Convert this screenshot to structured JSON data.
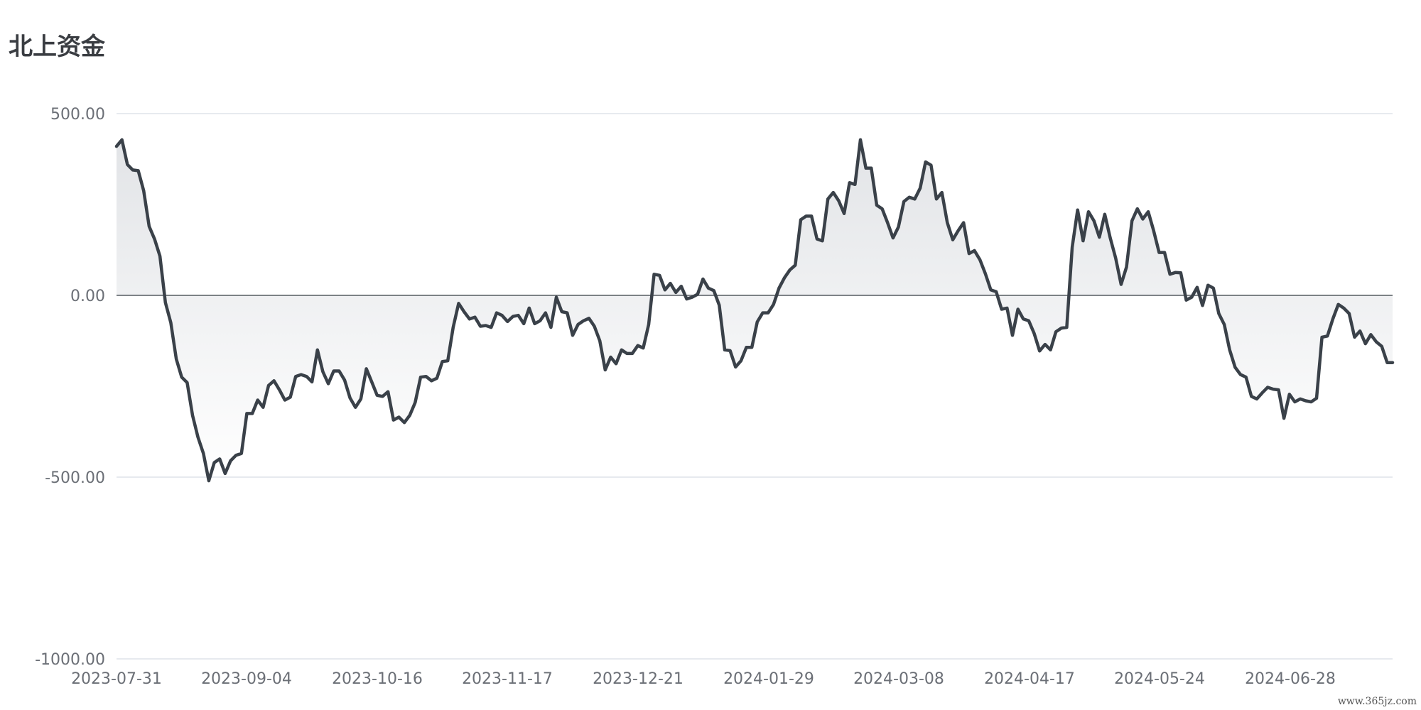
{
  "title": "北上资金",
  "watermark": "www.365jz.com",
  "chart_data": {
    "type": "area",
    "title": "北上资金",
    "ylim": [
      -1000,
      500
    ],
    "yticks": [
      500,
      0,
      -500,
      -1000
    ],
    "ytick_labels": [
      "500.00",
      "0.00",
      "-500.00",
      "-1000.00"
    ],
    "xtick_labels": [
      "2023-07-31",
      "2023-09-04",
      "2023-10-16",
      "2023-11-17",
      "2023-12-21",
      "2024-01-29",
      "2024-03-08",
      "2024-04-17",
      "2024-05-24",
      "2024-06-28"
    ],
    "grid": true,
    "colors": {
      "line": "#3a4149",
      "fill_top": "#e2e4e7",
      "fill_bottom": "#ffffff",
      "zero_line": "#555a60",
      "grid": "#dfe3ea"
    },
    "values": [
      410,
      428,
      360,
      345,
      343,
      288,
      190,
      155,
      108,
      -20,
      -75,
      -175,
      -225,
      -240,
      -330,
      -390,
      -435,
      -510,
      -460,
      -450,
      -490,
      -455,
      -440,
      -435,
      -325,
      -325,
      -288,
      -308,
      -248,
      -235,
      -260,
      -288,
      -280,
      -223,
      -218,
      -223,
      -238,
      -150,
      -210,
      -243,
      -208,
      -208,
      -233,
      -282,
      -308,
      -285,
      -202,
      -238,
      -275,
      -278,
      -265,
      -343,
      -335,
      -350,
      -330,
      -295,
      -225,
      -223,
      -235,
      -228,
      -182,
      -180,
      -88,
      -22,
      -45,
      -65,
      -60,
      -85,
      -83,
      -88,
      -48,
      -55,
      -72,
      -58,
      -55,
      -78,
      -35,
      -78,
      -70,
      -48,
      -88,
      -5,
      -45,
      -48,
      -110,
      -80,
      -70,
      -63,
      -85,
      -125,
      -205,
      -170,
      -188,
      -150,
      -160,
      -160,
      -138,
      -145,
      -80,
      58,
      55,
      15,
      33,
      8,
      25,
      -10,
      -5,
      3,
      45,
      20,
      13,
      -27,
      -150,
      -152,
      -197,
      -180,
      -143,
      -143,
      -73,
      -48,
      -48,
      -25,
      20,
      48,
      70,
      83,
      208,
      218,
      218,
      155,
      150,
      265,
      283,
      260,
      225,
      310,
      305,
      428,
      350,
      350,
      248,
      238,
      200,
      158,
      188,
      258,
      270,
      265,
      295,
      367,
      358,
      265,
      283,
      200,
      153,
      178,
      200,
      115,
      123,
      98,
      60,
      15,
      10,
      -38,
      -35,
      -110,
      -38,
      -65,
      -70,
      -105,
      -153,
      -135,
      -150,
      -100,
      -90,
      -88,
      133,
      235,
      150,
      230,
      205,
      160,
      223,
      158,
      103,
      30,
      78,
      205,
      238,
      210,
      230,
      178,
      118,
      118,
      58,
      63,
      62,
      -13,
      -5,
      22,
      -28,
      28,
      20,
      -50,
      -80,
      -150,
      -198,
      -218,
      -225,
      -278,
      -285,
      -268,
      -253,
      -258,
      -260,
      -338,
      -272,
      -293,
      -285,
      -290,
      -293,
      -283,
      -115,
      -112,
      -65,
      -25,
      -35,
      -50,
      -115,
      -98,
      -133,
      -108,
      -128,
      -140,
      -185,
      -185
    ]
  }
}
